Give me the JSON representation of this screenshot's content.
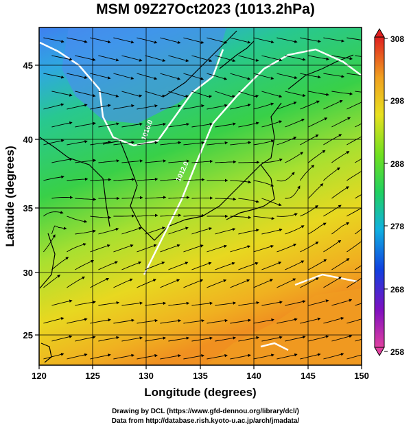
{
  "title": "MSM 09Z27Oct2023 (1013.2hPa)",
  "axes": {
    "xlabel": "Longitude (degrees)",
    "ylabel": "Latitude  (degrees)",
    "xticks": [
      "120",
      "125",
      "130",
      "135",
      "140",
      "145",
      "150"
    ],
    "yticks": [
      "25",
      "30",
      "35",
      "40",
      "45"
    ],
    "xlim": [
      120,
      150
    ],
    "ylim": [
      22.5,
      47.5
    ]
  },
  "colorbar": {
    "ticks": [
      "308",
      "298",
      "288",
      "278",
      "268",
      "258"
    ],
    "range": [
      258,
      308
    ]
  },
  "contour_labels": [
    "1016.0",
    "1012.0"
  ],
  "credits": {
    "line1": "Drawing by DCL (https://www.gfd-dennou.org/library/dcl/)",
    "line2": "Data from http://database.rish.kyoto-u.ac.jp/arch/jmadata/"
  },
  "colors": {
    "cold": "#4a8cf0",
    "mid": "#22d060",
    "warm": "#f0c020",
    "hot": "#f09020",
    "contour": "#ffffff",
    "stream": "#000000"
  }
}
